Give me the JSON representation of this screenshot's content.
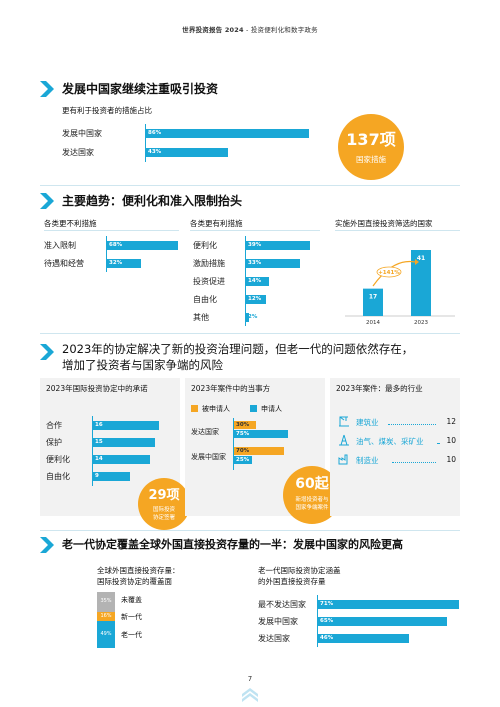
{
  "header": {
    "title_bold": "世界投资报告 2024",
    "separator": " - ",
    "subtitle": "投资便利化和数字政务"
  },
  "section1": {
    "title": "发展中国家继续注重吸引投资",
    "subtitle": "更有利于投资者的措施占比",
    "rows": [
      {
        "label": "发展中国家",
        "value": 86,
        "value_label": "86%"
      },
      {
        "label": "发达国家",
        "value": 43,
        "value_label": "43%"
      }
    ],
    "callout": {
      "number": "137项",
      "text": "国家措施"
    }
  },
  "section2": {
    "title": "主要趋势：便利化和准入限制抬头",
    "panel_unfavorable": {
      "title": "各类更不利措施",
      "rows": [
        {
          "label": "准入限制",
          "value": 68,
          "value_label": "68%"
        },
        {
          "label": "待遇和经营",
          "value": 32,
          "value_label": "32%"
        }
      ]
    },
    "panel_favorable": {
      "title": "各类更有利措施",
      "rows": [
        {
          "label": "便利化",
          "value": 39,
          "value_label": "39%"
        },
        {
          "label": "激励措施",
          "value": 33,
          "value_label": "33%"
        },
        {
          "label": "投资促进",
          "value": 14,
          "value_label": "14%"
        },
        {
          "label": "自由化",
          "value": 12,
          "value_label": "12%"
        },
        {
          "label": "其他",
          "value": 2,
          "value_label": "2%"
        }
      ]
    },
    "panel_screening": {
      "title": "实施外国直接投资筛选的国家",
      "chart_data": {
        "type": "bar",
        "categories": [
          "2014",
          "2023"
        ],
        "values": [
          17,
          41
        ],
        "value_labels": [
          "17",
          "41"
        ],
        "annotation": "+141%",
        "title": "实施外国直接投资筛选的国家"
      }
    }
  },
  "section3": {
    "title_line1": "2023年的协定解决了新的投资治理问题，但老一代的问题依然存在，",
    "title_line2": "增加了投资者与国家争端的风险",
    "panel_commitments": {
      "title": "2023年国际投资协定中的承诺",
      "rows": [
        {
          "label": "合作",
          "value": 16,
          "value_label": "16"
        },
        {
          "label": "保护",
          "value": 15,
          "value_label": "15"
        },
        {
          "label": "便利化",
          "value": 14,
          "value_label": "14"
        },
        {
          "label": "自由化",
          "value": 9,
          "value_label": "9"
        }
      ],
      "callout": {
        "number": "29项",
        "text_line1": "国际投资",
        "text_line2": "协定签署"
      }
    },
    "panel_parties": {
      "title": "2023年案件中的当事方",
      "legend": {
        "applicant": "被申请人",
        "claimant": "申请人"
      },
      "rows": [
        {
          "label": "发达国家",
          "respondent": 30,
          "respondent_label": "30%",
          "claimant": 75,
          "claimant_label": "75%"
        },
        {
          "label": "发展中国家",
          "respondent": 70,
          "respondent_label": "70%",
          "claimant": 25,
          "claimant_label": "25%"
        }
      ],
      "callout": {
        "number": "60起",
        "text_line1": "新增投资者与",
        "text_line2": "国家争端案件"
      }
    },
    "panel_industries": {
      "title": "2023年案件：最多的行业",
      "rows": [
        {
          "icon": "crane-icon",
          "label": "建筑业",
          "value": "12"
        },
        {
          "icon": "oil-rig-icon",
          "label": "油气、煤炭、采矿业",
          "value": "10"
        },
        {
          "icon": "factory-icon",
          "label": "制造业",
          "value": "10"
        }
      ]
    }
  },
  "section4": {
    "title": "老一代协定覆盖全球外国直接投资存量的一半：发展中国家的风险更高",
    "panel_coverage": {
      "title_line1": "全球外国直接投资存量：",
      "title_line2": "国际投资协定的覆盖面",
      "segments": [
        {
          "label": "未覆盖",
          "value": 35,
          "value_label": "35%",
          "color": "#b3b3b3"
        },
        {
          "label": "新一代",
          "value": 16,
          "value_label": "16%",
          "color": "#f5a623"
        },
        {
          "label": "老一代",
          "value": 49,
          "value_label": "49%",
          "color": "#1aa7d6"
        }
      ]
    },
    "panel_oldgen": {
      "title_line1": "老一代国际投资协定涵盖",
      "title_line2": "的外国直接投资存量",
      "rows": [
        {
          "label": "最不发达国家",
          "value": 71,
          "value_label": "71%"
        },
        {
          "label": "发展中国家",
          "value": 65,
          "value_label": "65%"
        },
        {
          "label": "发达国家",
          "value": 46,
          "value_label": "46%"
        }
      ]
    }
  },
  "footer": {
    "page_number": "7"
  },
  "colors": {
    "accent_blue": "#1aa7d6",
    "accent_orange": "#f5a623",
    "grey": "#b3b3b3"
  }
}
